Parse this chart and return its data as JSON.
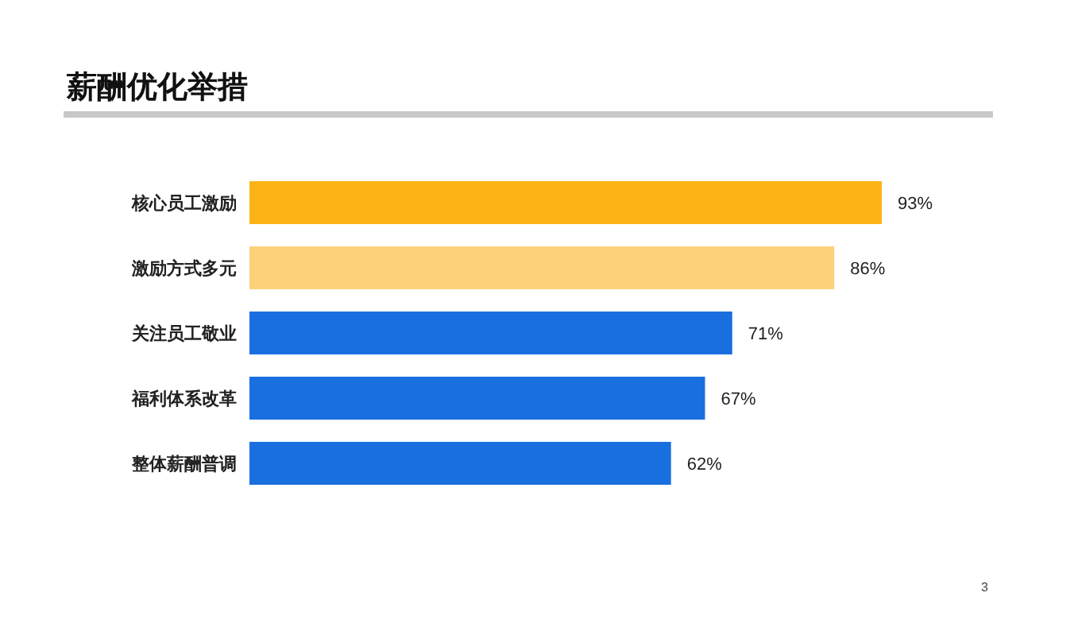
{
  "chart_data": {
    "type": "bar",
    "orientation": "horizontal",
    "title": "薪酬优化举措",
    "categories": [
      "核心员工激励",
      "激励方式多元",
      "关注员工敬业",
      "福利体系改革",
      "整体薪酬普调"
    ],
    "values": [
      93,
      86,
      71,
      67,
      62
    ],
    "value_labels": [
      "93%",
      "86%",
      "71%",
      "67%",
      "62%"
    ],
    "colors": [
      "#fbb414",
      "#fbd27a",
      "#1a6fe0",
      "#1a6fe0",
      "#1a6fe0"
    ],
    "annotations": [
      "3"
    ]
  }
}
